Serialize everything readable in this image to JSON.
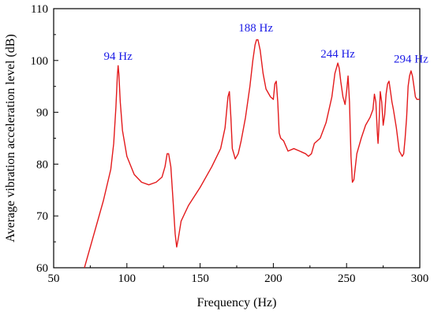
{
  "colors": {
    "line": "#e31a1c",
    "annotation": "#1a1ae6",
    "axis": "#000000"
  },
  "chart_data": {
    "type": "line",
    "title": "",
    "xlabel": "Frequency (Hz)",
    "ylabel": "Average vibration acceleration level (dB)",
    "xlim": [
      50,
      300
    ],
    "ylim": [
      60,
      110
    ],
    "grid": false,
    "xticks": [
      50,
      100,
      150,
      200,
      250,
      300
    ],
    "yticks": [
      60,
      70,
      80,
      90,
      100,
      110
    ],
    "xtick_labels": [
      "50",
      "100",
      "150",
      "200",
      "250",
      "300"
    ],
    "ytick_labels": [
      "60",
      "70",
      "80",
      "90",
      "100",
      "110"
    ],
    "annotations": [
      {
        "text": "94 Hz",
        "x": 94,
        "y": 99.5
      },
      {
        "text": "188 Hz",
        "x": 188,
        "y": 105
      },
      {
        "text": "244 Hz",
        "x": 244,
        "y": 100
      },
      {
        "text": "294 Hz",
        "x": 294,
        "y": 99
      }
    ],
    "series": [
      {
        "x": [
          71,
          78,
          84,
          89,
          91,
          92.5,
          93.5,
          94,
          94.5,
          95.5,
          97,
          100,
          105,
          110,
          115,
          120,
          124,
          126,
          127.5,
          128.5,
          130,
          131.5,
          133,
          134,
          135,
          137,
          142,
          150,
          158,
          164,
          167,
          169,
          170,
          171,
          172,
          173,
          174,
          176,
          178,
          181,
          184,
          186,
          187.5,
          188.5,
          189.5,
          191,
          193,
          195,
          198,
          200,
          201,
          202,
          203,
          204,
          205,
          207,
          210,
          214,
          218,
          222,
          224,
          226,
          228,
          232,
          236,
          240,
          242,
          244,
          245,
          246,
          247.5,
          249,
          250,
          251,
          252,
          253,
          254,
          255,
          257,
          260,
          263,
          266,
          268,
          269,
          270,
          271,
          271.5,
          272,
          273,
          274,
          275,
          276,
          277,
          278,
          279,
          280,
          281,
          282,
          284,
          286,
          287,
          288,
          289,
          290,
          291,
          292,
          293,
          294,
          295,
          296,
          297,
          298,
          300
        ],
        "y": [
          60,
          67,
          73,
          79,
          84,
          91,
          97,
          99,
          97.5,
          92,
          86.5,
          81.5,
          78,
          76.5,
          76,
          76.5,
          77.5,
          79.5,
          82,
          82,
          79.5,
          73,
          66.5,
          64,
          65.5,
          69,
          72,
          75.5,
          79.5,
          83,
          87,
          93,
          94,
          89,
          83,
          82,
          81,
          82,
          84.5,
          89,
          95,
          100,
          103,
          104,
          104,
          102,
          97.5,
          94.5,
          93,
          92.5,
          95.5,
          96,
          92,
          86,
          85,
          84.5,
          82.5,
          83,
          82.5,
          82,
          81.5,
          82,
          84,
          85,
          88,
          93,
          97.5,
          99.5,
          98.5,
          96,
          93,
          91.5,
          94,
          97,
          92,
          81.5,
          76.5,
          77,
          82,
          85,
          87.5,
          89,
          90.5,
          93.5,
          92,
          86,
          84,
          86.5,
          94,
          92,
          87.5,
          89.5,
          93.5,
          95.5,
          96,
          94,
          92,
          90.5,
          87,
          82.5,
          82,
          81.5,
          82,
          85,
          89,
          95,
          97,
          98,
          97,
          95,
          93,
          92.5,
          92.5
        ]
      }
    ]
  }
}
